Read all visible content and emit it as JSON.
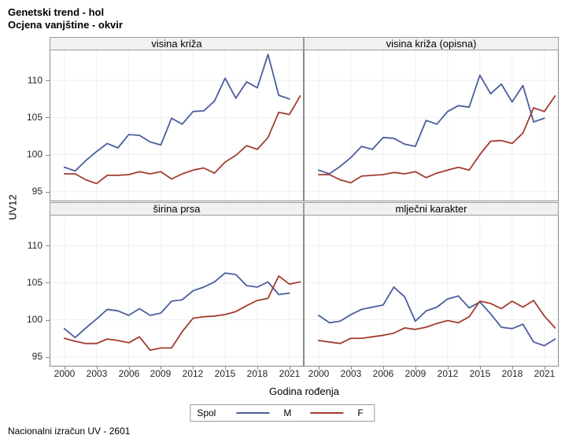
{
  "title_line1": "Genetski trend - hol",
  "title_line2": "Ocjena vanjštine - okvir",
  "footnote": "Nacionalni izračun UV - 2601",
  "colors": {
    "male_line": "#4a5e9e",
    "female_line": "#a33b31",
    "gridline": "#edeff2",
    "panel_border": "#8a8a8a",
    "header_fill": "#f1f1f1"
  },
  "chart_data": {
    "type": "line",
    "xlabel": "Godina rođenja",
    "ylabel": "UV12",
    "x_ticks": [
      2000,
      2003,
      2006,
      2009,
      2012,
      2015,
      2018,
      2021
    ],
    "y_ticks": [
      95,
      100,
      105,
      110
    ],
    "xlim": [
      1998.69,
      2022.26
    ],
    "ylim": [
      93.8,
      114.05
    ],
    "grid": true,
    "legend": {
      "title": "Spol",
      "position": "bottom",
      "entries": [
        {
          "label": "M",
          "color": "#4a5e9e"
        },
        {
          "label": "F",
          "color": "#a33b31"
        }
      ]
    },
    "start_year": 2000,
    "panels": [
      {
        "title": "visina križa",
        "series": [
          {
            "name": "M",
            "values": [
              98.3,
              97.8,
              99.2,
              100.4,
              101.5,
              100.9,
              102.7,
              102.6,
              101.7,
              101.3,
              104.9,
              104.1,
              105.8,
              105.9,
              107.2,
              110.3,
              107.6,
              109.8,
              109.0,
              113.5,
              108.0,
              107.5
            ]
          },
          {
            "name": "F",
            "values": [
              97.4,
              97.4,
              96.6,
              96.1,
              97.2,
              97.2,
              97.3,
              97.7,
              97.4,
              97.7,
              96.7,
              97.4,
              97.9,
              98.2,
              97.5,
              99.0,
              99.9,
              101.2,
              100.7,
              102.3,
              105.7,
              105.4,
              107.9
            ]
          }
        ]
      },
      {
        "title": "visina križa (opisna)",
        "series": [
          {
            "name": "M",
            "values": [
              97.9,
              97.4,
              98.4,
              99.6,
              101.1,
              100.7,
              102.3,
              102.2,
              101.4,
              101.1,
              104.6,
              104.1,
              105.8,
              106.6,
              106.4,
              110.7,
              108.2,
              109.5,
              107.1,
              109.3,
              104.4,
              104.9
            ]
          },
          {
            "name": "F",
            "values": [
              97.3,
              97.3,
              96.6,
              96.2,
              97.1,
              97.2,
              97.3,
              97.6,
              97.4,
              97.7,
              96.9,
              97.5,
              97.9,
              98.3,
              97.9,
              100.0,
              101.8,
              101.9,
              101.5,
              102.9,
              106.3,
              105.8,
              107.9
            ]
          }
        ]
      },
      {
        "title": "širina prsa",
        "series": [
          {
            "name": "M",
            "values": [
              98.8,
              97.6,
              98.9,
              100.1,
              101.4,
              101.2,
              100.6,
              101.5,
              100.6,
              100.9,
              102.5,
              102.7,
              103.9,
              104.4,
              105.1,
              106.3,
              106.1,
              104.6,
              104.4,
              105.1,
              103.4,
              103.6
            ]
          },
          {
            "name": "F",
            "values": [
              97.5,
              97.1,
              96.8,
              96.8,
              97.4,
              97.2,
              96.9,
              97.7,
              95.9,
              96.2,
              96.2,
              98.4,
              100.2,
              100.4,
              100.5,
              100.7,
              101.1,
              101.9,
              102.6,
              102.9,
              105.9,
              104.8,
              105.1
            ]
          }
        ]
      },
      {
        "title": "mlječni karakter",
        "series": [
          {
            "name": "M",
            "values": [
              100.6,
              99.6,
              99.8,
              100.7,
              101.4,
              101.7,
              102.0,
              104.4,
              103.1,
              99.8,
              101.2,
              101.7,
              102.8,
              103.2,
              101.6,
              102.4,
              100.8,
              99.0,
              98.8,
              99.4,
              97.0,
              96.5,
              97.4
            ]
          },
          {
            "name": "F",
            "values": [
              97.2,
              97.0,
              96.8,
              97.5,
              97.5,
              97.7,
              97.9,
              98.2,
              98.9,
              98.7,
              99.0,
              99.5,
              99.9,
              99.6,
              100.4,
              102.5,
              102.2,
              101.5,
              102.5,
              101.7,
              102.6,
              100.5,
              98.9
            ]
          }
        ]
      }
    ]
  }
}
